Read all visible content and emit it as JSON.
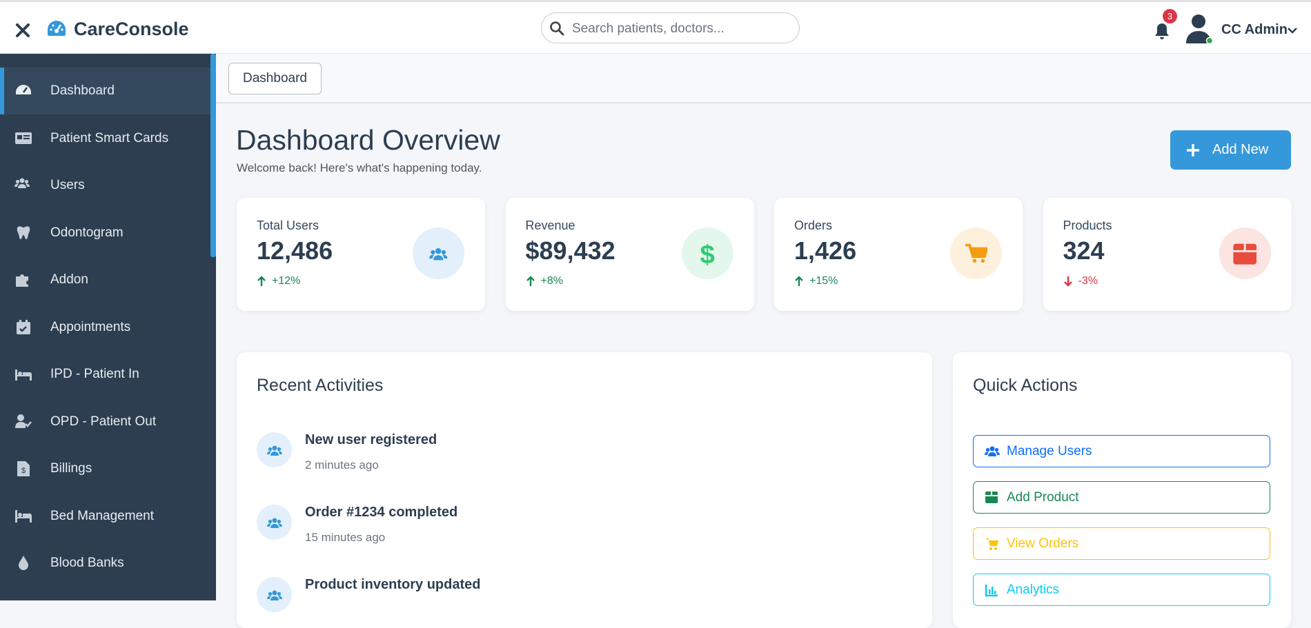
{
  "header": {
    "brand": "CareConsole",
    "search_placeholder": "Search patients, doctors...",
    "notification_count": "3",
    "user_name": "CC Admin"
  },
  "sidebar": {
    "items": [
      "Dashboard",
      "Patient Smart Cards",
      "Users",
      "Odontogram",
      "Addon",
      "Appointments",
      "IPD - Patient In",
      "OPD - Patient Out",
      "Billings",
      "Bed Management",
      "Blood Banks"
    ]
  },
  "breadcrumb": "Dashboard",
  "page": {
    "title": "Dashboard Overview",
    "subtitle": "Welcome back! Here's what's happening today.",
    "add_button": "Add New"
  },
  "stats": [
    {
      "label": "Total Users",
      "value": "12,486",
      "change": "+12%"
    },
    {
      "label": "Revenue",
      "value": "$89,432",
      "change": "+8%"
    },
    {
      "label": "Orders",
      "value": "1,426",
      "change": "+15%"
    },
    {
      "label": "Products",
      "value": "324",
      "change": "-3%"
    }
  ],
  "recent_activities": {
    "title": "Recent Activities",
    "items": [
      {
        "title": "New user registered",
        "time": "2 minutes ago"
      },
      {
        "title": "Order #1234 completed",
        "time": "15 minutes ago"
      },
      {
        "title": "Product inventory updated",
        "time": ""
      }
    ]
  },
  "quick_actions": {
    "title": "Quick Actions",
    "items": [
      "Manage Users",
      "Add Product",
      "View Orders",
      "Analytics"
    ]
  }
}
